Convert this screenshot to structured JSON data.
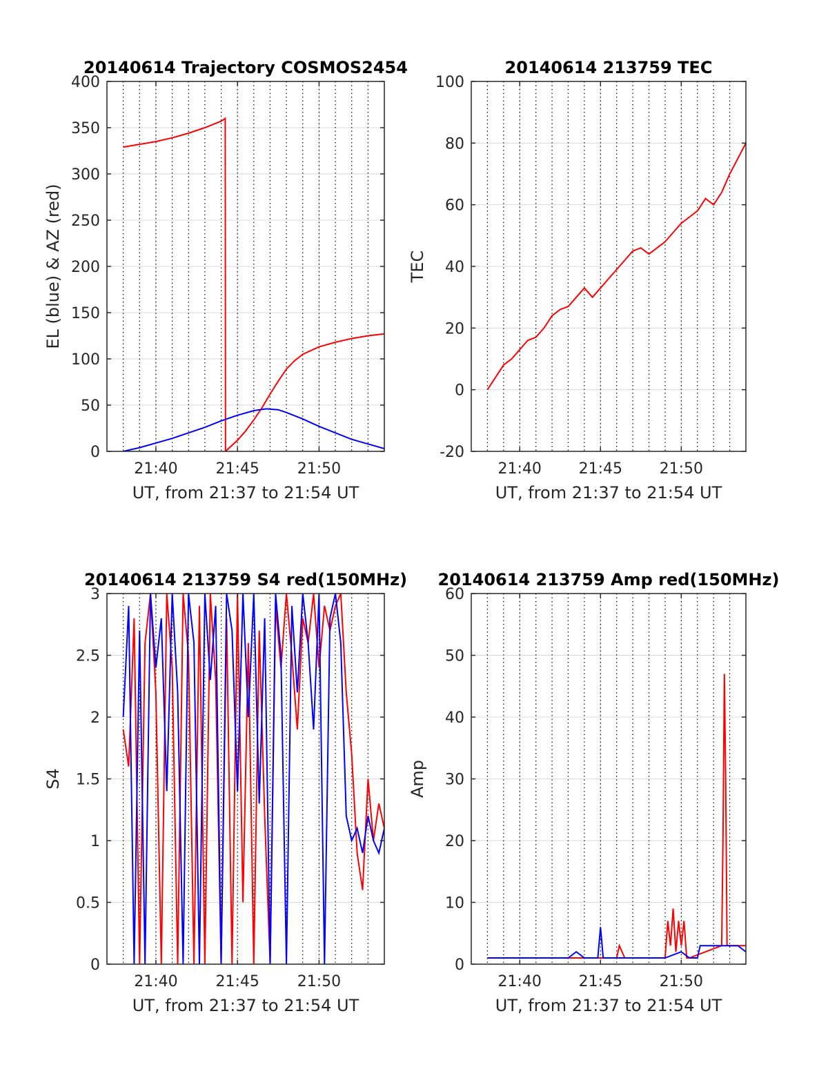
{
  "colors": {
    "red": "#ff0000",
    "blue": "#0000ff",
    "grid": "#d9d9d9",
    "axis": "#262626"
  },
  "chart_data": [
    {
      "type": "line",
      "title": "20140614 Trajectory COSMOS2454",
      "xlabel": "UT, from 21:37 to 21:54 UT",
      "ylabel": "EL (blue) & AZ (red)",
      "xlim": [
        "21:37",
        "21:54"
      ],
      "ylim": [
        0,
        400
      ],
      "yticks": [
        0,
        50,
        100,
        150,
        200,
        250,
        300,
        350,
        400
      ],
      "xticks": [
        "21:40",
        "21:45",
        "21:50"
      ],
      "grid": true,
      "series": [
        {
          "color": "red",
          "x": [
            "21:38:00",
            "21:39:00",
            "21:40:00",
            "21:41:00",
            "21:42:00",
            "21:43:00",
            "21:44:00",
            "21:44:15",
            "21:44:16",
            "21:45:00",
            "21:45:30",
            "21:46:00",
            "21:46:30",
            "21:47:00",
            "21:47:30",
            "21:48:00",
            "21:48:30",
            "21:49:00",
            "21:50:00",
            "21:51:00",
            "21:52:00",
            "21:53:00",
            "21:54:00"
          ],
          "values": [
            329,
            332,
            335,
            339,
            344,
            350,
            357,
            360,
            0,
            12,
            22,
            34,
            47,
            62,
            76,
            89,
            98,
            105,
            113,
            118,
            122,
            125,
            127
          ]
        },
        {
          "color": "blue",
          "x": [
            "21:38:00",
            "21:39:00",
            "21:40:00",
            "21:41:00",
            "21:42:00",
            "21:43:00",
            "21:44:00",
            "21:45:00",
            "21:46:00",
            "21:46:45",
            "21:47:30",
            "21:48:00",
            "21:49:00",
            "21:50:00",
            "21:51:00",
            "21:52:00",
            "21:53:00",
            "21:54:00"
          ],
          "values": [
            0,
            4,
            9,
            14,
            20,
            26,
            33,
            39,
            44,
            46,
            45,
            42,
            35,
            27,
            20,
            13,
            8,
            3
          ]
        }
      ]
    },
    {
      "type": "line",
      "title": "20140614 213759 TEC",
      "xlabel": "UT, from 21:37 to 21:54 UT",
      "ylabel": "TEC",
      "xlim": [
        "21:37",
        "21:54"
      ],
      "ylim": [
        -20,
        100
      ],
      "yticks": [
        -20,
        0,
        20,
        40,
        60,
        80,
        100
      ],
      "xticks": [
        "21:40",
        "21:45",
        "21:50"
      ],
      "grid": true,
      "series": [
        {
          "color": "red",
          "x": [
            "21:38:00",
            "21:38:30",
            "21:39:00",
            "21:39:30",
            "21:40:00",
            "21:40:30",
            "21:41:00",
            "21:41:30",
            "21:42:00",
            "21:42:30",
            "21:43:00",
            "21:43:30",
            "21:44:00",
            "21:44:30",
            "21:45:00",
            "21:45:30",
            "21:46:00",
            "21:46:30",
            "21:47:00",
            "21:47:30",
            "21:48:00",
            "21:48:30",
            "21:49:00",
            "21:49:30",
            "21:50:00",
            "21:50:30",
            "21:51:00",
            "21:51:30",
            "21:52:00",
            "21:52:30",
            "21:53:00",
            "21:53:30",
            "21:54:00"
          ],
          "values": [
            0,
            4,
            8,
            10,
            13,
            16,
            17,
            20,
            24,
            26,
            27,
            30,
            33,
            30,
            33,
            36,
            39,
            42,
            45,
            46,
            44,
            46,
            48,
            51,
            54,
            56,
            58,
            62,
            60,
            64,
            70,
            75,
            80
          ]
        }
      ]
    },
    {
      "type": "line",
      "title": "20140614 213759 S4 red(150MHz)",
      "xlabel": "UT, from 21:37 to 21:54 UT",
      "ylabel": "S4",
      "xlim": [
        "21:37",
        "21:54"
      ],
      "ylim": [
        0,
        3
      ],
      "yticks": [
        0,
        0.5,
        1,
        1.5,
        2,
        2.5,
        3
      ],
      "xticks": [
        "21:40",
        "21:45",
        "21:50"
      ],
      "grid": true,
      "series": [
        {
          "color": "red",
          "x": [
            "21:38:00",
            "21:38:20",
            "21:38:40",
            "21:39:00",
            "21:39:20",
            "21:39:40",
            "21:40:00",
            "21:40:20",
            "21:40:40",
            "21:41:00",
            "21:41:20",
            "21:41:40",
            "21:42:00",
            "21:42:20",
            "21:42:40",
            "21:43:00",
            "21:43:20",
            "21:43:40",
            "21:44:00",
            "21:44:20",
            "21:44:40",
            "21:45:00",
            "21:45:20",
            "21:45:40",
            "21:46:00",
            "21:46:20",
            "21:46:40",
            "21:47:00",
            "21:47:20",
            "21:47:40",
            "21:48:00",
            "21:48:20",
            "21:48:40",
            "21:49:00",
            "21:49:20",
            "21:49:40",
            "21:50:00",
            "21:50:20",
            "21:50:40",
            "21:51:00",
            "21:51:20",
            "21:51:40",
            "21:52:00",
            "21:52:20",
            "21:52:40",
            "21:53:00",
            "21:53:20",
            "21:53:40",
            "21:54:00"
          ],
          "values": [
            1.9,
            1.6,
            2.8,
            0.0,
            2.6,
            3.0,
            2.2,
            0.0,
            3.0,
            2.4,
            0.0,
            3.0,
            2.5,
            0.0,
            2.9,
            0.0,
            3.0,
            2.3,
            0.0,
            2.8,
            0.0,
            3.0,
            0.5,
            2.6,
            0.0,
            2.7,
            1.2,
            0.0,
            2.9,
            2.4,
            3.0,
            2.5,
            1.9,
            2.8,
            2.6,
            3.0,
            2.4,
            2.9,
            2.7,
            2.9,
            3.0,
            2.2,
            1.7,
            0.9,
            0.6,
            1.5,
            1.0,
            1.3,
            1.1
          ]
        },
        {
          "color": "blue",
          "x": [
            "21:38:00",
            "21:38:20",
            "21:38:40",
            "21:39:00",
            "21:39:20",
            "21:39:40",
            "21:40:00",
            "21:40:20",
            "21:40:40",
            "21:41:00",
            "21:41:20",
            "21:41:40",
            "21:42:00",
            "21:42:20",
            "21:42:40",
            "21:43:00",
            "21:43:20",
            "21:43:40",
            "21:44:00",
            "21:44:20",
            "21:44:40",
            "21:45:00",
            "21:45:20",
            "21:45:40",
            "21:46:00",
            "21:46:20",
            "21:46:40",
            "21:47:00",
            "21:47:20",
            "21:47:40",
            "21:48:00",
            "21:48:20",
            "21:48:40",
            "21:49:00",
            "21:49:20",
            "21:49:40",
            "21:50:00",
            "21:50:20",
            "21:50:40",
            "21:51:00",
            "21:51:20",
            "21:51:40",
            "21:52:00",
            "21:52:20",
            "21:52:40",
            "21:53:00",
            "21:53:20",
            "21:53:40",
            "21:54:00"
          ],
          "values": [
            2.0,
            2.9,
            0.0,
            2.7,
            0.0,
            3.0,
            2.4,
            2.8,
            1.4,
            3.0,
            2.2,
            0.0,
            3.0,
            2.6,
            0.0,
            3.0,
            2.3,
            2.9,
            0.0,
            3.0,
            2.7,
            1.4,
            3.0,
            2.0,
            3.0,
            1.3,
            2.8,
            0.0,
            3.0,
            2.5,
            0.0,
            2.9,
            2.2,
            3.0,
            2.6,
            1.9,
            3.0,
            0.0,
            2.8,
            3.0,
            2.6,
            1.2,
            1.0,
            1.1,
            0.9,
            1.2,
            1.0,
            0.9,
            1.1
          ]
        }
      ]
    },
    {
      "type": "line",
      "title": "20140614 213759 Amp red(150MHz)",
      "xlabel": "UT, from 21:37 to 21:54 UT",
      "ylabel": "Amp",
      "xlim": [
        "21:37",
        "21:54"
      ],
      "ylim": [
        0,
        60
      ],
      "yticks": [
        0,
        10,
        20,
        30,
        40,
        50,
        60
      ],
      "xticks": [
        "21:40",
        "21:45",
        "21:50"
      ],
      "grid": true,
      "series": [
        {
          "color": "red",
          "x": [
            "21:38:00",
            "21:46:00",
            "21:46:10",
            "21:46:20",
            "21:46:30",
            "21:49:00",
            "21:49:10",
            "21:49:20",
            "21:49:30",
            "21:49:40",
            "21:49:50",
            "21:50:00",
            "21:50:10",
            "21:50:20",
            "21:50:30",
            "21:52:30",
            "21:52:35",
            "21:52:40",
            "21:52:45",
            "21:52:50",
            "21:54:00"
          ],
          "values": [
            1,
            1,
            3,
            2,
            1,
            1,
            7,
            3,
            9,
            2,
            7,
            3,
            7,
            1,
            1,
            3,
            20,
            47,
            30,
            3,
            3
          ]
        },
        {
          "color": "blue",
          "x": [
            "21:38:00",
            "21:39:00",
            "21:40:00",
            "21:41:00",
            "21:42:00",
            "21:43:00",
            "21:43:30",
            "21:44:00",
            "21:44:50",
            "21:45:00",
            "21:45:10",
            "21:46:00",
            "21:47:00",
            "21:48:00",
            "21:49:00",
            "21:50:00",
            "21:50:30",
            "21:51:00",
            "21:51:10",
            "21:52:00",
            "21:53:00",
            "21:53:30",
            "21:54:00"
          ],
          "values": [
            1,
            1,
            1,
            1,
            1,
            1,
            2,
            1,
            1,
            6,
            1,
            1,
            1,
            1,
            1,
            2,
            1,
            1,
            3,
            3,
            3,
            3,
            2
          ]
        }
      ]
    }
  ]
}
